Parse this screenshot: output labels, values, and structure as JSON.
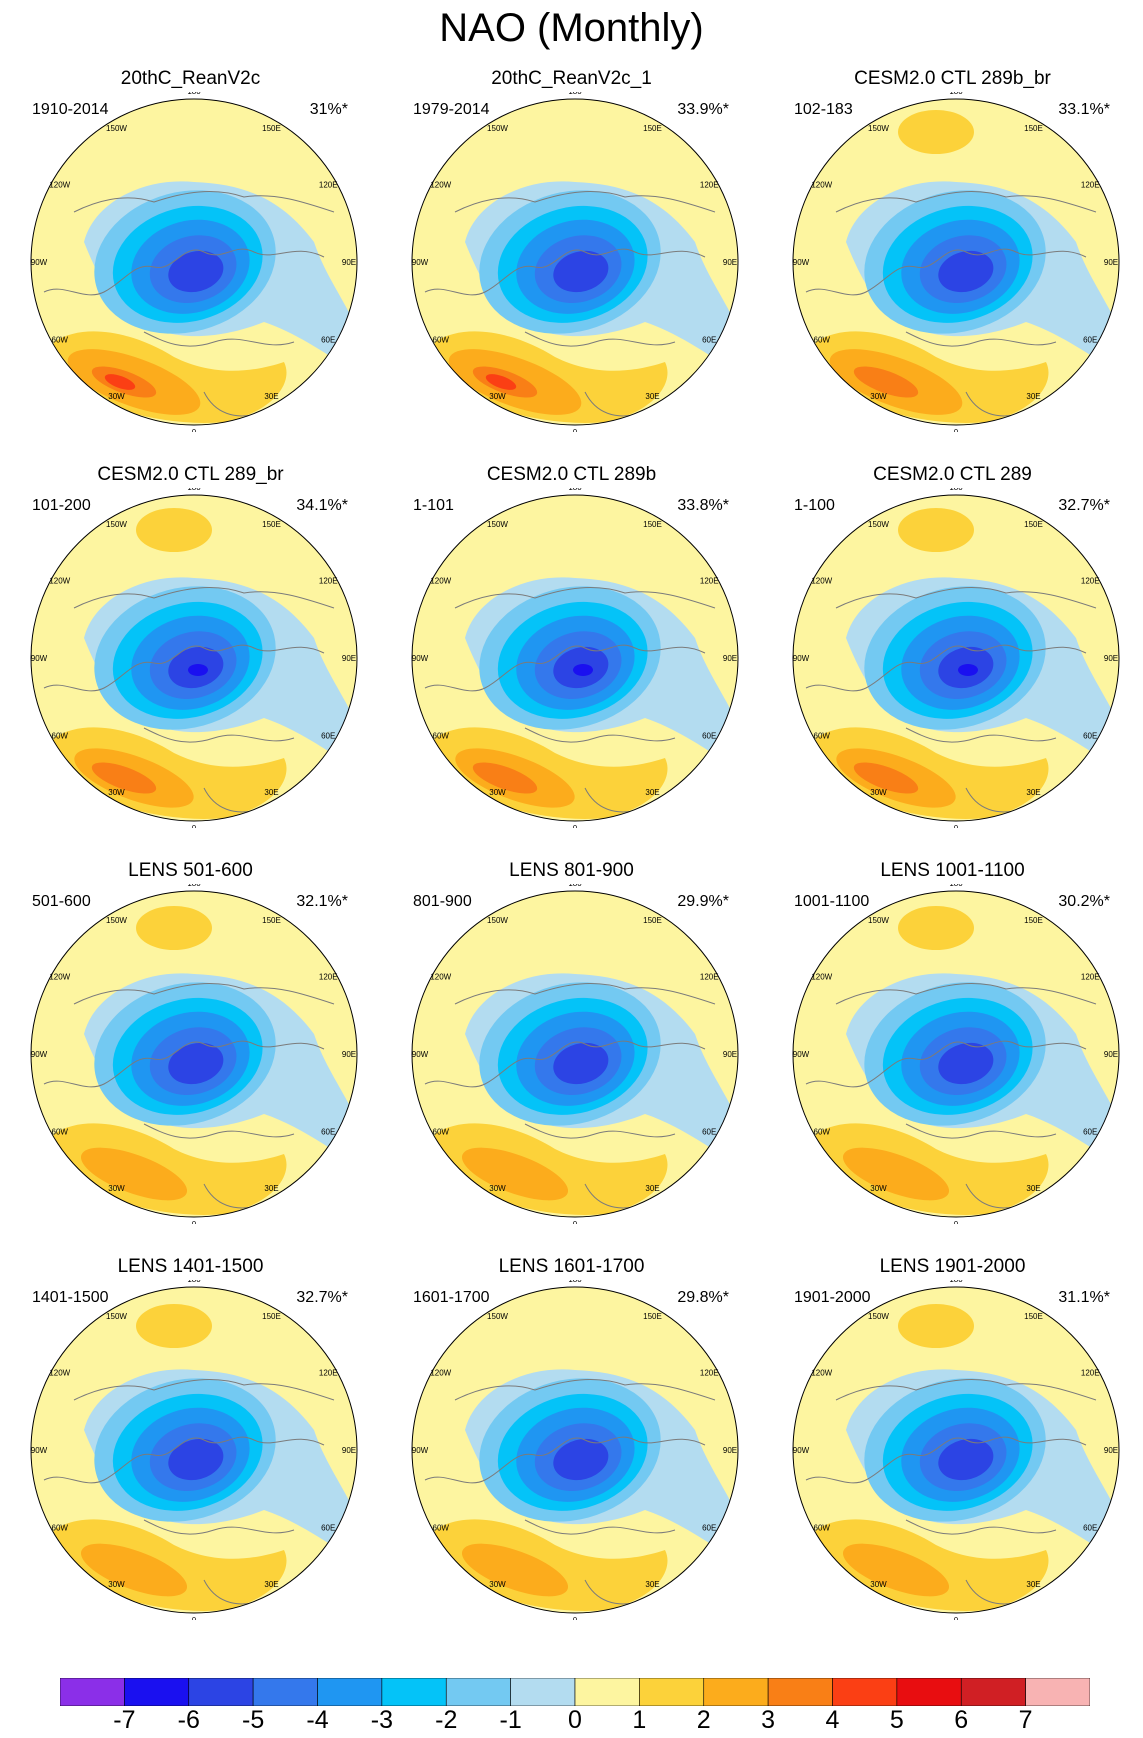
{
  "title": "NAO (Monthly)",
  "colors": {
    "neg7": "#8b2fe8",
    "neg6": "#1a10f0",
    "neg5": "#2c44e4",
    "neg4": "#3478ec",
    "neg3": "#1f96f2",
    "neg2": "#04c3f8",
    "neg1": "#73c9f2",
    "neg0": "#b3dcf0",
    "pos0": "#fdf5a0",
    "pos1": "#fcd23a",
    "pos2": "#fcac1c",
    "pos3": "#f97f16",
    "pos4": "#fb3f14",
    "pos5": "#e80d10",
    "pos6": "#d01f24",
    "pos7": "#f8b3b3",
    "coast": "#7b7b7b"
  },
  "longitude_labels": [
    "180",
    "150E",
    "120E",
    "90E",
    "60E",
    "30E",
    "0",
    "30W",
    "60W",
    "90W",
    "120W",
    "150W"
  ],
  "panels": [
    {
      "title": "20thC_ReanV2c",
      "period": "1910-2014",
      "variance": "31%*"
    },
    {
      "title": "20thC_ReanV2c_1",
      "period": "1979-2014",
      "variance": "33.9%*"
    },
    {
      "title": "CESM2.0 CTL 289b_br",
      "period": "102-183",
      "variance": "33.1%*"
    },
    {
      "title": "CESM2.0 CTL 289_br",
      "period": "101-200",
      "variance": "34.1%*"
    },
    {
      "title": "CESM2.0 CTL 289b",
      "period": "1-101",
      "variance": "33.8%*"
    },
    {
      "title": "CESM2.0 CTL 289",
      "period": "1-100",
      "variance": "32.7%*"
    },
    {
      "title": "LENS 501-600",
      "period": "501-600",
      "variance": "32.1%*"
    },
    {
      "title": "LENS 801-900",
      "period": "801-900",
      "variance": "29.9%*"
    },
    {
      "title": "LENS 1001-1100",
      "period": "1001-1100",
      "variance": "30.2%*"
    },
    {
      "title": "LENS 1401-1500",
      "period": "1401-1500",
      "variance": "32.7%*"
    },
    {
      "title": "LENS 1601-1700",
      "period": "1601-1700",
      "variance": "29.8%*"
    },
    {
      "title": "LENS 1901-2000",
      "period": "1901-2000",
      "variance": "31.1%*"
    }
  ],
  "colorbar": {
    "labels": [
      "-7",
      "-6",
      "-5",
      "-4",
      "-3",
      "-2",
      "-1",
      "0",
      "1",
      "2",
      "3",
      "4",
      "5",
      "6",
      "7"
    ]
  }
}
